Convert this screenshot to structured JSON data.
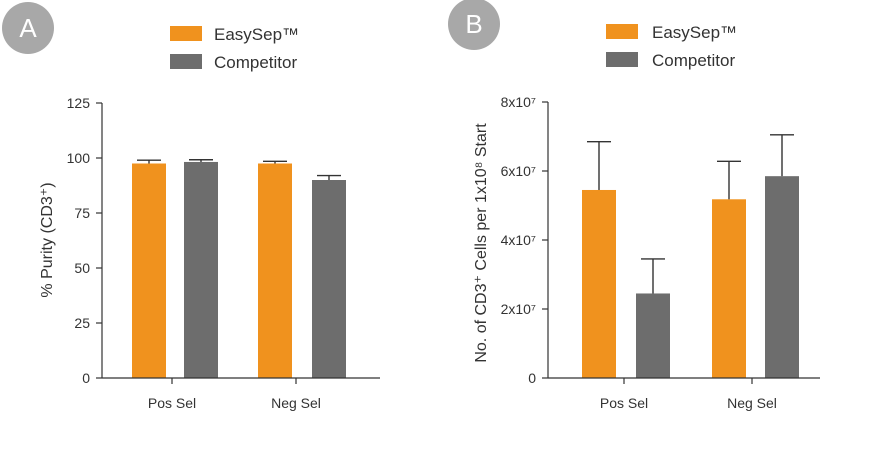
{
  "colors": {
    "easysep": "#f0921e",
    "competitor": "#6d6d6d",
    "badge": "#a8a8a8"
  },
  "chart_data": [
    {
      "panel_label": "A",
      "type": "bar",
      "categories": [
        "Pos Sel",
        "Neg Sel"
      ],
      "series": [
        {
          "name": "EasySep™",
          "values": [
            97.5,
            97.5
          ],
          "errors": [
            1.5,
            1.0
          ]
        },
        {
          "name": "Competitor",
          "values": [
            98.2,
            90.0
          ],
          "errors": [
            1.0,
            2.0
          ]
        }
      ],
      "ylabel": "% Purity (CD3⁺)",
      "ylim": [
        0,
        125
      ],
      "yticks": [
        0,
        25,
        50,
        75,
        100,
        125
      ],
      "ytick_labels": [
        "0",
        "25",
        "50",
        "75",
        "100",
        "125"
      ],
      "legend": [
        "EasySep™",
        "Competitor"
      ],
      "legend_position": "top"
    },
    {
      "panel_label": "B",
      "type": "bar",
      "categories": [
        "Pos Sel",
        "Neg Sel"
      ],
      "series": [
        {
          "name": "EasySep™",
          "values": [
            54500000,
            51800000
          ],
          "errors": [
            14000000,
            11000000
          ]
        },
        {
          "name": "Competitor",
          "values": [
            24500000,
            58500000
          ],
          "errors": [
            10000000,
            12000000
          ]
        }
      ],
      "ylabel": "No. of CD3⁺ Cells per 1x10⁸ Start",
      "ylim": [
        0,
        80000000
      ],
      "yticks": [
        0,
        20000000,
        40000000,
        60000000,
        80000000
      ],
      "ytick_labels": [
        "0",
        "2x10⁷",
        "4x10⁷",
        "6x10⁷",
        "8x10⁷"
      ],
      "legend": [
        "EasySep™",
        "Competitor"
      ],
      "legend_position": "top"
    }
  ]
}
